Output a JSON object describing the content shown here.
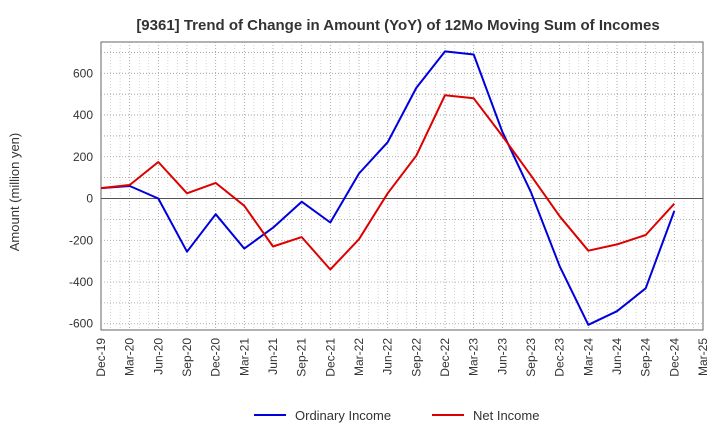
{
  "chart_data": {
    "type": "line",
    "title": "[9361]  Trend of Change in Amount (YoY) of 12Mo Moving Sum of Incomes",
    "ylabel": "Amount (million yen)",
    "xlabel": "",
    "ylim": [
      -630,
      750
    ],
    "yticks": [
      600,
      400,
      200,
      0,
      -200,
      -400,
      -600
    ],
    "ytick_labels": [
      "600",
      "400",
      "200",
      "0",
      "-200",
      "-400",
      "-600"
    ],
    "x": [
      "Dec-19",
      "Mar-20",
      "Jun-20",
      "Sep-20",
      "Dec-20",
      "Mar-21",
      "Jun-21",
      "Sep-21",
      "Dec-21",
      "Mar-22",
      "Jun-22",
      "Sep-22",
      "Dec-22",
      "Mar-23",
      "Jun-23",
      "Sep-23",
      "Dec-23",
      "Mar-24",
      "Jun-24",
      "Sep-24",
      "Dec-24",
      "Mar-25"
    ],
    "grid": true,
    "legend_position": "bottom-center",
    "series": [
      {
        "name": "Ordinary Income",
        "color": "#0000dd",
        "values": [
          50,
          60,
          0,
          -255,
          -75,
          -240,
          -140,
          -15,
          -115,
          120,
          270,
          530,
          705,
          690,
          320,
          30,
          -325,
          -605,
          -540,
          -430,
          -60,
          null
        ]
      },
      {
        "name": "Net Income",
        "color": "#dd0000",
        "values": [
          50,
          65,
          175,
          25,
          75,
          -35,
          -230,
          -185,
          -340,
          -195,
          25,
          205,
          495,
          480,
          300,
          110,
          -85,
          -250,
          -220,
          -175,
          -25,
          null
        ]
      }
    ]
  }
}
